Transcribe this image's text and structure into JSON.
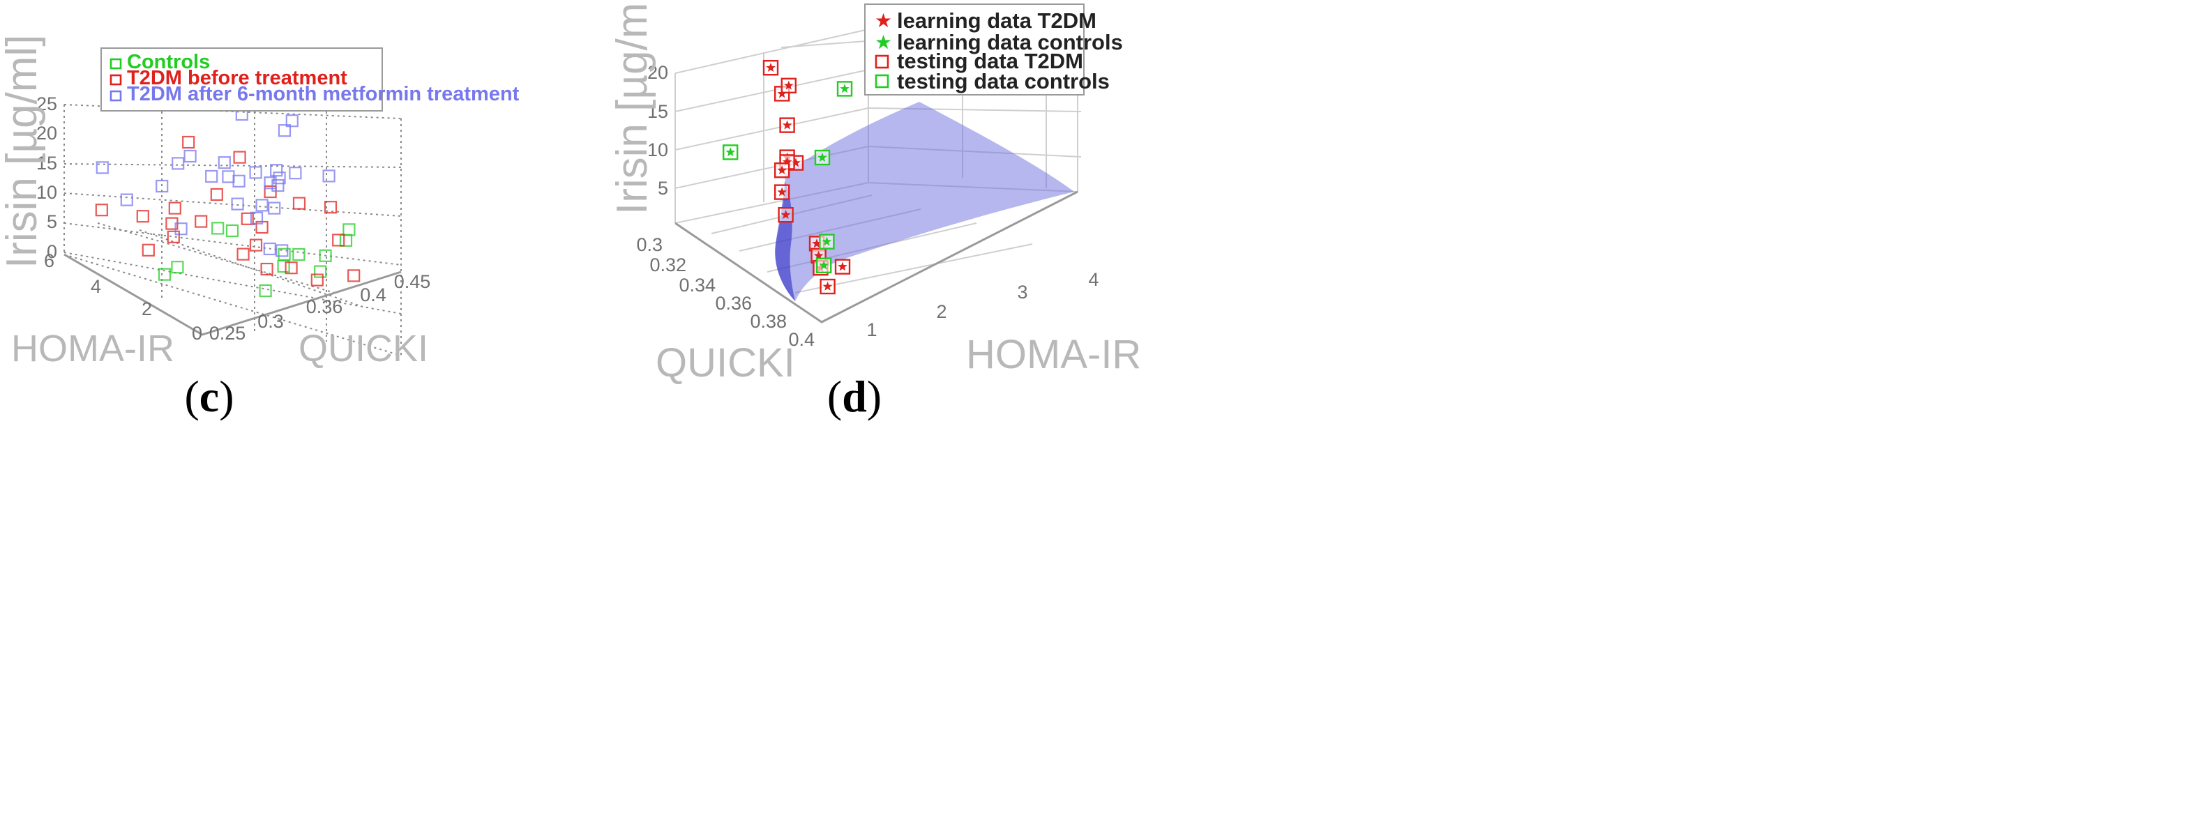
{
  "chart_data": [
    {
      "type": "scatter",
      "panel_label": "c",
      "axes": {
        "x": {
          "label": "QUICKI",
          "ticks": [
            "0.25",
            "0.3",
            "0.36",
            "0.4",
            "0.45"
          ],
          "range": [
            0.25,
            0.45
          ]
        },
        "y": {
          "label": "HOMA-IR",
          "ticks": [
            "0",
            "2",
            "4",
            "6"
          ],
          "range": [
            0,
            6
          ]
        },
        "z": {
          "label": "Irisin [µg/ml]",
          "ticks": [
            "0",
            "5",
            "10",
            "15",
            "20",
            "25"
          ],
          "range": [
            0,
            25
          ]
        }
      },
      "grid": true,
      "legend_position": "top-right",
      "legend": [
        {
          "label": "Controls",
          "color": "#22cc22"
        },
        {
          "label": "T2DM before treatment",
          "color": "#e0201c"
        },
        {
          "label": "T2DM after 6-month metformin treatment",
          "color": "#7777ee"
        }
      ],
      "series": [
        {
          "name": "Controls",
          "marker": "square",
          "color": "#22cc22",
          "points": [
            [
              0.27,
              2.5,
              3.5
            ],
            [
              0.29,
              2.8,
              3.0
            ],
            [
              0.33,
              0.7,
              1.6
            ],
            [
              0.34,
              3.2,
              6.0
            ],
            [
              0.35,
              3.0,
              5.5
            ],
            [
              0.37,
              1.6,
              3.6
            ],
            [
              0.38,
              1.4,
              3.5
            ],
            [
              0.39,
              0.9,
              1.2
            ],
            [
              0.4,
              1.1,
              2.9
            ],
            [
              0.43,
              1.5,
              3.0
            ],
            [
              0.44,
              1.8,
              3.6
            ],
            [
              0.36,
              1.2,
              3.0
            ]
          ]
        },
        {
          "name": "T2DM before treatment",
          "marker": "square",
          "color": "#e0201c",
          "points": [
            [
              0.26,
              4.8,
              9.7
            ],
            [
              0.29,
              4.3,
              8.2
            ],
            [
              0.27,
              3.2,
              6.0
            ],
            [
              0.3,
              3.4,
              6.2
            ],
            [
              0.31,
              3.9,
              6.8
            ],
            [
              0.32,
              4.2,
              8.2
            ],
            [
              0.33,
              3.5,
              7.0
            ],
            [
              0.35,
              4.9,
              16.1
            ],
            [
              0.36,
              4.1,
              8.6
            ],
            [
              0.37,
              3.2,
              6.0
            ],
            [
              0.38,
              3.0,
              4.5
            ],
            [
              0.39,
              4.4,
              12.6
            ],
            [
              0.4,
              3.5,
              8.3
            ],
            [
              0.42,
              3.1,
              6.2
            ],
            [
              0.44,
              2.6,
              5.6
            ],
            [
              0.34,
              2.1,
              4.1
            ],
            [
              0.35,
              1.5,
              2.4
            ],
            [
              0.37,
              1.3,
              2.0
            ],
            [
              0.38,
              0.6,
              1.0
            ],
            [
              0.41,
              0.3,
              0.8
            ],
            [
              0.36,
              2.4,
              3.9
            ],
            [
              0.42,
              1.4,
              3.8
            ]
          ]
        },
        {
          "name": "T2DM after 6-month metformin treatment",
          "marker": "square",
          "color": "#7777ee",
          "points": [
            [
              0.27,
              5.2,
              15.4
            ],
            [
              0.29,
              5.0,
              9.4
            ],
            [
              0.3,
              3.9,
              13.6
            ],
            [
              0.31,
              3.5,
              6.8
            ],
            [
              0.33,
              4.5,
              14.5
            ],
            [
              0.34,
              4.4,
              15.4
            ],
            [
              0.35,
              3.9,
              12.6
            ],
            [
              0.36,
              3.6,
              12.7
            ],
            [
              0.37,
              4.2,
              13.2
            ],
            [
              0.38,
              4.0,
              10.0
            ],
            [
              0.39,
              3.7,
              11.6
            ],
            [
              0.4,
              3.5,
              9.8
            ],
            [
              0.41,
              3.6,
              8.6
            ],
            [
              0.42,
              4.1,
              9.5
            ],
            [
              0.36,
              3.2,
              9.0
            ],
            [
              0.38,
              3.0,
              8.2
            ],
            [
              0.37,
              2.8,
              7.0
            ],
            [
              0.39,
              2.9,
              7.4
            ],
            [
              0.4,
              3.1,
              11.5
            ],
            [
              0.44,
              4.6,
              14.0
            ],
            [
              0.45,
              4.7,
              14.9
            ],
            [
              0.43,
              3.7,
              9.4
            ],
            [
              0.45,
              3.1,
              9.2
            ],
            [
              0.36,
              1.8,
              4.6
            ],
            [
              0.37,
              1.7,
              4.0
            ],
            [
              0.39,
              4.3,
              20.0
            ]
          ]
        }
      ]
    },
    {
      "type": "scatter",
      "panel_label": "d",
      "axes": {
        "x": {
          "label": "HOMA-IR",
          "ticks": [
            "1",
            "2",
            "3",
            "4"
          ],
          "range": [
            0.5,
            4.3
          ]
        },
        "y": {
          "label": "QUICKI",
          "ticks": [
            "0.3",
            "0.32",
            "0.34",
            "0.36",
            "0.38",
            "0.4"
          ],
          "range": [
            0.3,
            0.4
          ]
        },
        "z": {
          "label": "Irisin [µg/ml]",
          "ticks": [
            "5",
            "10",
            "15",
            "20"
          ],
          "range": [
            0,
            20
          ]
        }
      },
      "grid": true,
      "legend_position": "top-right",
      "legend": [
        {
          "label": "learning data T2DM",
          "marker": "star",
          "color": "#e0201c"
        },
        {
          "label": "learning data controls",
          "marker": "star",
          "color": "#22cc22"
        },
        {
          "label": "testing data T2DM",
          "marker": "square",
          "color": "#e0201c"
        },
        {
          "label": "testing data controls",
          "marker": "square",
          "color": "#22cc22"
        }
      ],
      "surface": {
        "color": "#6f6fe0",
        "opacity": 0.5
      },
      "series": [
        {
          "name": "testing data T2DM",
          "marker": "square+star",
          "color": "#e0201c",
          "points": [
            [
              1.0,
              0.33,
              19.2
            ],
            [
              1.1,
              0.33,
              19.8
            ],
            [
              1.3,
              0.3,
              18.0
            ],
            [
              1.0,
              0.335,
              15.7
            ],
            [
              1.0,
              0.335,
              11.6
            ],
            [
              1.05,
              0.34,
              11.2
            ],
            [
              1.0,
              0.335,
              11.0
            ],
            [
              1.0,
              0.33,
              9.4
            ],
            [
              1.0,
              0.33,
              6.6
            ],
            [
              0.9,
              0.34,
              5.2
            ],
            [
              1.05,
              0.36,
              3.0
            ],
            [
              1.0,
              0.365,
              2.2
            ],
            [
              0.95,
              0.37,
              1.4
            ],
            [
              1.2,
              0.375,
              1.0
            ],
            [
              0.9,
              0.38,
              0.3
            ]
          ]
        },
        {
          "name": "testing data controls",
          "marker": "square+star",
          "color": "#22cc22",
          "points": [
            [
              0.7,
              0.3,
              9.8
            ],
            [
              1.6,
              0.33,
              8.4
            ],
            [
              2.4,
              0.3,
              10.5
            ],
            [
              1.2,
              0.36,
              2.6
            ],
            [
              1.0,
              0.37,
              1.5
            ]
          ]
        }
      ]
    }
  ],
  "icons": {
    "legend_swatch": "square-marker-icon",
    "star": "star-icon"
  }
}
